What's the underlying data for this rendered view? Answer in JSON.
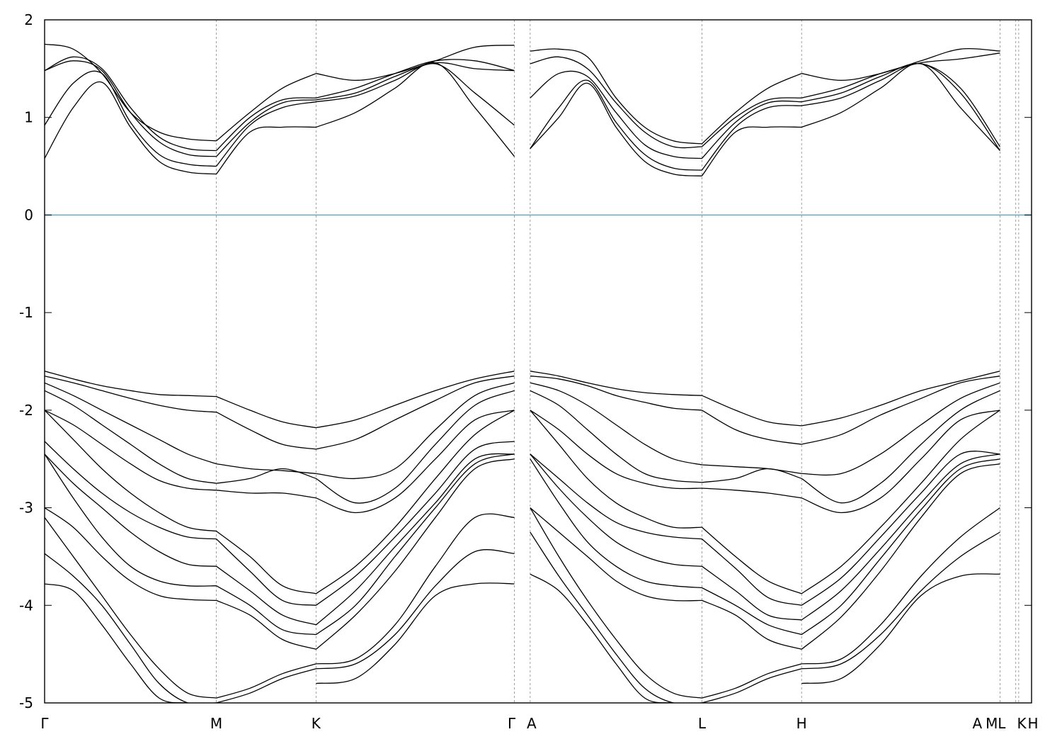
{
  "chart_data": {
    "type": "line",
    "title": "",
    "xlabel": "",
    "ylabel": "",
    "ylim": [
      -5,
      2
    ],
    "yticks": [
      -5,
      -4,
      -3,
      -2,
      -1,
      0,
      1,
      2
    ],
    "xlim": [
      0,
      10.0
    ],
    "kpoints": [
      {
        "label": "Γ",
        "x": 0.0
      },
      {
        "label": "M",
        "x": 1.74
      },
      {
        "label": "K",
        "x": 2.75
      },
      {
        "label": "Γ",
        "x": 4.76
      },
      {
        "label": "A",
        "x": 4.92
      },
      {
        "label": "L",
        "x": 6.66
      },
      {
        "label": "H",
        "x": 7.67
      },
      {
        "label": "A",
        "x": 9.68
      },
      {
        "label": "M",
        "x": 9.84
      },
      {
        "label": "L",
        "x": 9.87
      },
      {
        "label": "K",
        "x": 10.0
      },
      {
        "label": "H",
        "x": 10.0
      }
    ],
    "fermi_level": 0,
    "fermi_color": "#5fb3c7",
    "band_color": "#000000",
    "grid": "vertical dashed at k-points",
    "segments": [
      {
        "from": "Γ",
        "to": "M",
        "x": [
          0,
          0.29,
          0.58,
          0.87,
          1.16,
          1.45,
          1.74
        ]
      },
      {
        "from": "M",
        "to": "K",
        "x": [
          1.74,
          2.08,
          2.41,
          2.75
        ]
      },
      {
        "from": "K",
        "to": "Γ",
        "x": [
          2.75,
          3.15,
          3.55,
          3.96,
          4.36,
          4.76
        ]
      },
      {
        "from": "A",
        "to": "L",
        "x": [
          4.92,
          5.21,
          5.5,
          5.79,
          6.08,
          6.37,
          6.66
        ]
      },
      {
        "from": "L",
        "to": "H",
        "x": [
          6.66,
          7.0,
          7.33,
          7.67
        ]
      },
      {
        "from": "H",
        "to": "A",
        "x": [
          7.67,
          8.07,
          8.47,
          8.88,
          9.28,
          9.68
        ]
      }
    ],
    "series": [
      {
        "segment": 0,
        "values": [
          1.75,
          1.7,
          1.45,
          1.05,
          0.85,
          0.78,
          0.76
        ]
      },
      {
        "segment": 0,
        "values": [
          1.48,
          1.62,
          1.5,
          1.1,
          0.8,
          0.68,
          0.66
        ]
      },
      {
        "segment": 0,
        "values": [
          1.48,
          1.58,
          1.48,
          1.05,
          0.75,
          0.62,
          0.6
        ]
      },
      {
        "segment": 0,
        "values": [
          0.92,
          1.35,
          1.45,
          0.95,
          0.62,
          0.52,
          0.5
        ]
      },
      {
        "segment": 0,
        "values": [
          0.58,
          1.1,
          1.36,
          0.9,
          0.55,
          0.44,
          0.42
        ]
      },
      {
        "segment": 1,
        "values": [
          0.76,
          1.05,
          1.3,
          1.45
        ]
      },
      {
        "segment": 1,
        "values": [
          0.66,
          1.0,
          1.18,
          1.2
        ]
      },
      {
        "segment": 1,
        "values": [
          0.6,
          0.95,
          1.15,
          1.18
        ]
      },
      {
        "segment": 1,
        "values": [
          0.5,
          0.92,
          1.1,
          1.16
        ]
      },
      {
        "segment": 1,
        "values": [
          0.42,
          0.85,
          0.9,
          0.9
        ]
      },
      {
        "segment": 2,
        "values": [
          1.45,
          1.38,
          1.45,
          1.58,
          1.72,
          1.74
        ]
      },
      {
        "segment": 2,
        "values": [
          1.2,
          1.3,
          1.45,
          1.58,
          1.58,
          1.48
        ]
      },
      {
        "segment": 2,
        "values": [
          1.18,
          1.25,
          1.42,
          1.56,
          1.5,
          1.48
        ]
      },
      {
        "segment": 2,
        "values": [
          1.16,
          1.22,
          1.38,
          1.55,
          1.25,
          0.92
        ]
      },
      {
        "segment": 2,
        "values": [
          0.9,
          1.05,
          1.3,
          1.56,
          1.1,
          0.6
        ]
      },
      {
        "segment": 3,
        "values": [
          1.68,
          1.7,
          1.62,
          1.2,
          0.9,
          0.76,
          0.73
        ]
      },
      {
        "segment": 3,
        "values": [
          1.55,
          1.62,
          1.5,
          1.15,
          0.85,
          0.7,
          0.7
        ]
      },
      {
        "segment": 3,
        "values": [
          1.2,
          1.45,
          1.42,
          1.05,
          0.72,
          0.6,
          0.58
        ]
      },
      {
        "segment": 3,
        "values": [
          0.68,
          1.1,
          1.38,
          0.95,
          0.62,
          0.48,
          0.46
        ]
      },
      {
        "segment": 3,
        "values": [
          0.68,
          1.0,
          1.35,
          0.9,
          0.55,
          0.42,
          0.4
        ]
      },
      {
        "segment": 4,
        "values": [
          0.73,
          1.05,
          1.3,
          1.45
        ]
      },
      {
        "segment": 4,
        "values": [
          0.7,
          1.0,
          1.18,
          1.2
        ]
      },
      {
        "segment": 4,
        "values": [
          0.58,
          0.95,
          1.15,
          1.16
        ]
      },
      {
        "segment": 4,
        "values": [
          0.46,
          0.9,
          1.1,
          1.12
        ]
      },
      {
        "segment": 4,
        "values": [
          0.4,
          0.85,
          0.9,
          0.9
        ]
      },
      {
        "segment": 5,
        "values": [
          1.45,
          1.38,
          1.45,
          1.58,
          1.7,
          1.68
        ]
      },
      {
        "segment": 5,
        "values": [
          1.2,
          1.3,
          1.45,
          1.56,
          1.6,
          1.66
        ]
      },
      {
        "segment": 5,
        "values": [
          1.16,
          1.25,
          1.42,
          1.55,
          1.3,
          0.7
        ]
      },
      {
        "segment": 5,
        "values": [
          1.12,
          1.2,
          1.38,
          1.55,
          1.25,
          0.66
        ]
      },
      {
        "segment": 5,
        "values": [
          0.9,
          1.05,
          1.3,
          1.55,
          1.1,
          0.66
        ]
      },
      {
        "segment": 0,
        "values": [
          -1.6,
          -1.68,
          -1.75,
          -1.8,
          -1.84,
          -1.85,
          -1.86
        ]
      },
      {
        "segment": 0,
        "values": [
          -1.65,
          -1.72,
          -1.8,
          -1.88,
          -1.95,
          -2.0,
          -2.02
        ]
      },
      {
        "segment": 0,
        "values": [
          -1.72,
          -1.85,
          -2.0,
          -2.15,
          -2.3,
          -2.45,
          -2.55
        ]
      },
      {
        "segment": 0,
        "values": [
          -1.8,
          -1.95,
          -2.15,
          -2.35,
          -2.55,
          -2.7,
          -2.75
        ]
      },
      {
        "segment": 0,
        "values": [
          -2.0,
          -2.15,
          -2.35,
          -2.55,
          -2.72,
          -2.8,
          -2.82
        ]
      },
      {
        "segment": 0,
        "values": [
          -2.0,
          -2.3,
          -2.6,
          -2.85,
          -3.05,
          -3.2,
          -3.24
        ]
      },
      {
        "segment": 0,
        "values": [
          -2.32,
          -2.6,
          -2.85,
          -3.05,
          -3.2,
          -3.3,
          -3.32
        ]
      },
      {
        "segment": 0,
        "values": [
          -2.45,
          -2.75,
          -3.0,
          -3.25,
          -3.45,
          -3.58,
          -3.6
        ]
      },
      {
        "segment": 0,
        "values": [
          -2.45,
          -2.9,
          -3.3,
          -3.6,
          -3.75,
          -3.8,
          -3.8
        ]
      },
      {
        "segment": 0,
        "values": [
          -3.0,
          -3.2,
          -3.5,
          -3.75,
          -3.9,
          -3.94,
          -3.95
        ]
      },
      {
        "segment": 0,
        "values": [
          -3.1,
          -3.5,
          -3.9,
          -4.3,
          -4.65,
          -4.9,
          -4.95
        ]
      },
      {
        "segment": 0,
        "values": [
          -3.47,
          -3.7,
          -4.0,
          -4.4,
          -4.8,
          -5.0,
          -5.0
        ]
      },
      {
        "segment": 0,
        "values": [
          -3.78,
          -3.85,
          -4.2,
          -4.6,
          -4.95,
          -5.0,
          -5.0
        ]
      },
      {
        "segment": 1,
        "values": [
          -1.86,
          -2.0,
          -2.12,
          -2.18
        ]
      },
      {
        "segment": 1,
        "values": [
          -2.02,
          -2.2,
          -2.35,
          -2.4
        ]
      },
      {
        "segment": 1,
        "values": [
          -2.55,
          -2.6,
          -2.62,
          -2.65
        ]
      },
      {
        "segment": 1,
        "values": [
          -2.75,
          -2.7,
          -2.6,
          -2.7
        ]
      },
      {
        "segment": 1,
        "values": [
          -2.82,
          -2.85,
          -2.85,
          -2.9
        ]
      },
      {
        "segment": 1,
        "values": [
          -3.24,
          -3.5,
          -3.8,
          -3.88
        ]
      },
      {
        "segment": 1,
        "values": [
          -3.32,
          -3.65,
          -3.95,
          -4.0
        ]
      },
      {
        "segment": 1,
        "values": [
          -3.6,
          -3.85,
          -4.1,
          -4.2
        ]
      },
      {
        "segment": 1,
        "values": [
          -3.8,
          -4.0,
          -4.25,
          -4.3
        ]
      },
      {
        "segment": 1,
        "values": [
          -3.95,
          -4.1,
          -4.35,
          -4.45
        ]
      },
      {
        "segment": 1,
        "values": [
          -4.95,
          -4.85,
          -4.7,
          -4.6
        ]
      },
      {
        "segment": 1,
        "values": [
          -5.0,
          -4.9,
          -4.75,
          -4.65
        ]
      },
      {
        "segment": 2,
        "values": [
          -2.18,
          -2.1,
          -1.95,
          -1.8,
          -1.68,
          -1.6
        ]
      },
      {
        "segment": 2,
        "values": [
          -2.4,
          -2.3,
          -2.1,
          -1.9,
          -1.72,
          -1.65
        ]
      },
      {
        "segment": 2,
        "values": [
          -2.65,
          -2.7,
          -2.6,
          -2.2,
          -1.85,
          -1.72
        ]
      },
      {
        "segment": 2,
        "values": [
          -2.7,
          -2.95,
          -2.8,
          -2.35,
          -1.95,
          -1.8
        ]
      },
      {
        "segment": 2,
        "values": [
          -2.9,
          -3.05,
          -2.9,
          -2.5,
          -2.1,
          -2.0
        ]
      },
      {
        "segment": 2,
        "values": [
          -3.88,
          -3.6,
          -3.2,
          -2.7,
          -2.25,
          -2.0
        ]
      },
      {
        "segment": 2,
        "values": [
          -4.0,
          -3.7,
          -3.3,
          -2.85,
          -2.4,
          -2.32
        ]
      },
      {
        "segment": 2,
        "values": [
          -4.2,
          -3.85,
          -3.4,
          -2.95,
          -2.5,
          -2.45
        ]
      },
      {
        "segment": 2,
        "values": [
          -4.3,
          -4.0,
          -3.5,
          -3.0,
          -2.55,
          -2.45
        ]
      },
      {
        "segment": 2,
        "values": [
          -4.45,
          -4.1,
          -3.65,
          -3.1,
          -2.6,
          -2.5
        ]
      },
      {
        "segment": 2,
        "values": [
          -4.6,
          -4.55,
          -4.2,
          -3.6,
          -3.1,
          -3.1
        ]
      },
      {
        "segment": 2,
        "values": [
          -4.65,
          -4.6,
          -4.3,
          -3.8,
          -3.45,
          -3.47
        ]
      },
      {
        "segment": 2,
        "values": [
          -4.8,
          -4.75,
          -4.4,
          -3.9,
          -3.78,
          -3.78
        ]
      },
      {
        "segment": 3,
        "values": [
          -1.6,
          -1.65,
          -1.72,
          -1.78,
          -1.82,
          -1.84,
          -1.85
        ]
      },
      {
        "segment": 3,
        "values": [
          -1.65,
          -1.68,
          -1.75,
          -1.85,
          -1.92,
          -1.98,
          -2.0
        ]
      },
      {
        "segment": 3,
        "values": [
          -1.72,
          -1.8,
          -1.95,
          -2.15,
          -2.35,
          -2.5,
          -2.56
        ]
      },
      {
        "segment": 3,
        "values": [
          -1.8,
          -1.95,
          -2.2,
          -2.45,
          -2.65,
          -2.72,
          -2.74
        ]
      },
      {
        "segment": 3,
        "values": [
          -2.0,
          -2.2,
          -2.45,
          -2.65,
          -2.75,
          -2.8,
          -2.8
        ]
      },
      {
        "segment": 3,
        "values": [
          -2.0,
          -2.35,
          -2.7,
          -2.95,
          -3.1,
          -3.2,
          -3.2
        ]
      },
      {
        "segment": 3,
        "values": [
          -2.45,
          -2.7,
          -2.95,
          -3.15,
          -3.25,
          -3.3,
          -3.32
        ]
      },
      {
        "segment": 3,
        "values": [
          -2.45,
          -2.8,
          -3.1,
          -3.35,
          -3.5,
          -3.58,
          -3.6
        ]
      },
      {
        "segment": 3,
        "values": [
          -2.5,
          -2.95,
          -3.35,
          -3.6,
          -3.75,
          -3.8,
          -3.82
        ]
      },
      {
        "segment": 3,
        "values": [
          -3.0,
          -3.25,
          -3.5,
          -3.75,
          -3.9,
          -3.95,
          -3.95
        ]
      },
      {
        "segment": 3,
        "values": [
          -3.0,
          -3.5,
          -3.95,
          -4.35,
          -4.7,
          -4.9,
          -4.95
        ]
      },
      {
        "segment": 3,
        "values": [
          -3.25,
          -3.7,
          -4.1,
          -4.5,
          -4.85,
          -5.0,
          -5.0
        ]
      },
      {
        "segment": 3,
        "values": [
          -3.68,
          -3.85,
          -4.2,
          -4.6,
          -4.95,
          -5.0,
          -5.0
        ]
      },
      {
        "segment": 4,
        "values": [
          -1.85,
          -2.0,
          -2.12,
          -2.16
        ]
      },
      {
        "segment": 4,
        "values": [
          -2.0,
          -2.2,
          -2.3,
          -2.35
        ]
      },
      {
        "segment": 4,
        "values": [
          -2.56,
          -2.58,
          -2.6,
          -2.65
        ]
      },
      {
        "segment": 4,
        "values": [
          -2.74,
          -2.7,
          -2.6,
          -2.7
        ]
      },
      {
        "segment": 4,
        "values": [
          -2.8,
          -2.82,
          -2.85,
          -2.9
        ]
      },
      {
        "segment": 4,
        "values": [
          -3.2,
          -3.5,
          -3.75,
          -3.88
        ]
      },
      {
        "segment": 4,
        "values": [
          -3.32,
          -3.62,
          -3.92,
          -4.0
        ]
      },
      {
        "segment": 4,
        "values": [
          -3.6,
          -3.85,
          -4.1,
          -4.15
        ]
      },
      {
        "segment": 4,
        "values": [
          -3.82,
          -4.0,
          -4.2,
          -4.3
        ]
      },
      {
        "segment": 4,
        "values": [
          -3.95,
          -4.1,
          -4.35,
          -4.45
        ]
      },
      {
        "segment": 4,
        "values": [
          -4.95,
          -4.85,
          -4.7,
          -4.6
        ]
      },
      {
        "segment": 4,
        "values": [
          -5.0,
          -4.9,
          -4.75,
          -4.65
        ]
      },
      {
        "segment": 5,
        "values": [
          -2.16,
          -2.08,
          -1.95,
          -1.8,
          -1.7,
          -1.6
        ]
      },
      {
        "segment": 5,
        "values": [
          -2.35,
          -2.25,
          -2.05,
          -1.88,
          -1.72,
          -1.65
        ]
      },
      {
        "segment": 5,
        "values": [
          -2.65,
          -2.65,
          -2.45,
          -2.15,
          -1.88,
          -1.72
        ]
      },
      {
        "segment": 5,
        "values": [
          -2.7,
          -2.95,
          -2.75,
          -2.35,
          -2.0,
          -1.8
        ]
      },
      {
        "segment": 5,
        "values": [
          -2.9,
          -3.05,
          -2.9,
          -2.5,
          -2.1,
          -2.0
        ]
      },
      {
        "segment": 5,
        "values": [
          -3.88,
          -3.6,
          -3.2,
          -2.75,
          -2.3,
          -2.0
        ]
      },
      {
        "segment": 5,
        "values": [
          -4.0,
          -3.72,
          -3.3,
          -2.85,
          -2.45,
          -2.45
        ]
      },
      {
        "segment": 5,
        "values": [
          -4.15,
          -3.85,
          -3.42,
          -2.95,
          -2.55,
          -2.45
        ]
      },
      {
        "segment": 5,
        "values": [
          -4.3,
          -4.0,
          -3.52,
          -3.02,
          -2.6,
          -2.5
        ]
      },
      {
        "segment": 5,
        "values": [
          -4.45,
          -4.12,
          -3.65,
          -3.1,
          -2.65,
          -2.55
        ]
      },
      {
        "segment": 5,
        "values": [
          -4.6,
          -4.55,
          -4.2,
          -3.7,
          -3.3,
          -3.0
        ]
      },
      {
        "segment": 5,
        "values": [
          -4.65,
          -4.6,
          -4.3,
          -3.85,
          -3.5,
          -3.25
        ]
      },
      {
        "segment": 5,
        "values": [
          -4.8,
          -4.75,
          -4.4,
          -3.9,
          -3.7,
          -3.68
        ]
      }
    ]
  }
}
